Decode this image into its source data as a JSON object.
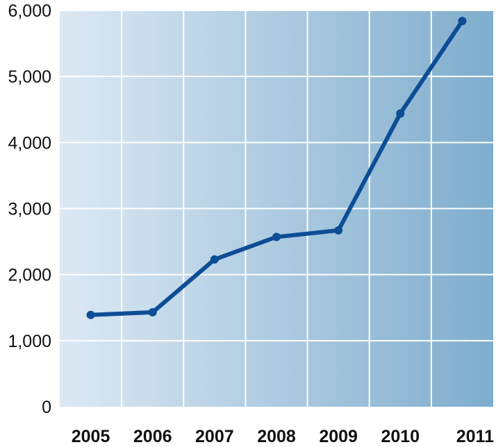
{
  "chart_data": {
    "type": "line",
    "title": "",
    "xlabel": "",
    "ylabel": "",
    "x": [
      "2005",
      "2006",
      "2007",
      "2008",
      "2009",
      "2010",
      "2011"
    ],
    "series": [
      {
        "values": [
          1390,
          1430,
          2230,
          2570,
          2670,
          4440,
          5840
        ]
      }
    ],
    "ylim": [
      0,
      6000
    ],
    "yticks": [
      0,
      1000,
      2000,
      3000,
      4000,
      5000,
      6000
    ],
    "ytick_labels": [
      "0",
      "1,000",
      "2,000",
      "3,000",
      "4,000",
      "5,000",
      "6,000"
    ],
    "grid": true,
    "colors": {
      "line": "#0d4d96",
      "gradient_start": "#dce9f4",
      "gradient_end": "#7fadcd",
      "grid": "#ffffff"
    }
  }
}
